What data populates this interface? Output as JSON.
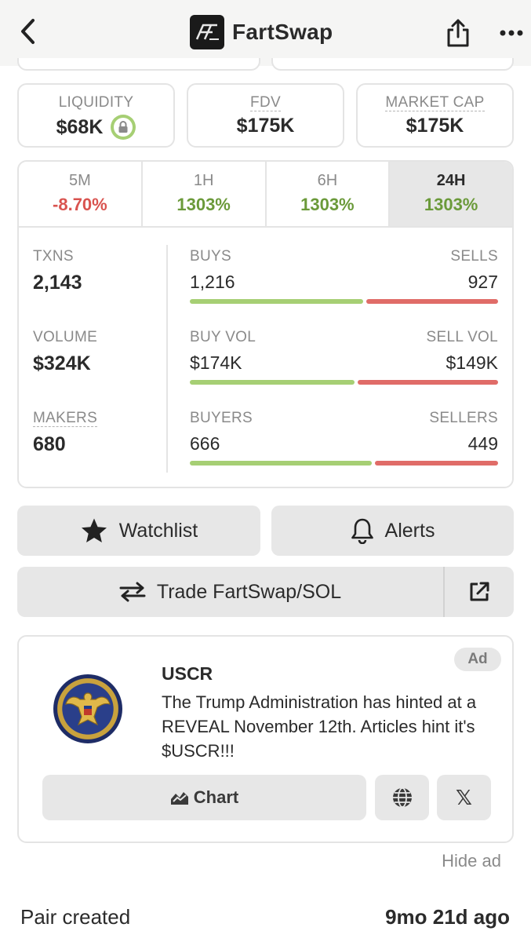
{
  "header": {
    "title": "FartSwap"
  },
  "stats": [
    {
      "label": "LIQUIDITY",
      "value": "$68K",
      "locked": true
    },
    {
      "label": "FDV",
      "value": "$175K"
    },
    {
      "label": "MARKET CAP",
      "value": "$175K"
    }
  ],
  "timeframes": [
    {
      "label": "5M",
      "change": "-8.70%",
      "direction": "down"
    },
    {
      "label": "1H",
      "change": "1303%",
      "direction": "up"
    },
    {
      "label": "6H",
      "change": "1303%",
      "direction": "up"
    },
    {
      "label": "24H",
      "change": "1303%",
      "direction": "up",
      "active": true
    }
  ],
  "metrics": {
    "txns": {
      "label": "TXNS",
      "value": "2,143"
    },
    "volume": {
      "label": "VOLUME",
      "value": "$324K"
    },
    "makers": {
      "label": "MAKERS",
      "value": "680"
    }
  },
  "splits": {
    "txns": {
      "left_label": "BUYS",
      "left_value": "1,216",
      "right_label": "SELLS",
      "right_value": "927",
      "left_fraction": 0.567
    },
    "volume": {
      "left_label": "BUY VOL",
      "left_value": "$174K",
      "right_label": "SELL VOL",
      "right_value": "$149K",
      "left_fraction": 0.539
    },
    "makers": {
      "left_label": "BUYERS",
      "left_value": "666",
      "right_label": "SELLERS",
      "right_value": "449",
      "left_fraction": 0.597
    }
  },
  "actions": {
    "watchlist": "Watchlist",
    "alerts": "Alerts",
    "trade": "Trade FartSwap/SOL"
  },
  "ad": {
    "badge": "Ad",
    "title": "USCR",
    "text": "The Trump Administration has hinted at a REVEAL November 12th. Articles hint it's $USCR!!!",
    "chart_label": "Chart",
    "x_label": "𝕏",
    "hide_label": "Hide ad"
  },
  "pair": {
    "label": "Pair created",
    "value": "9mo 21d ago"
  },
  "colors": {
    "positive": "#6b9a3a",
    "negative": "#d9534f",
    "buy_bar": "#a6cf74",
    "sell_bar": "#e06c68"
  }
}
